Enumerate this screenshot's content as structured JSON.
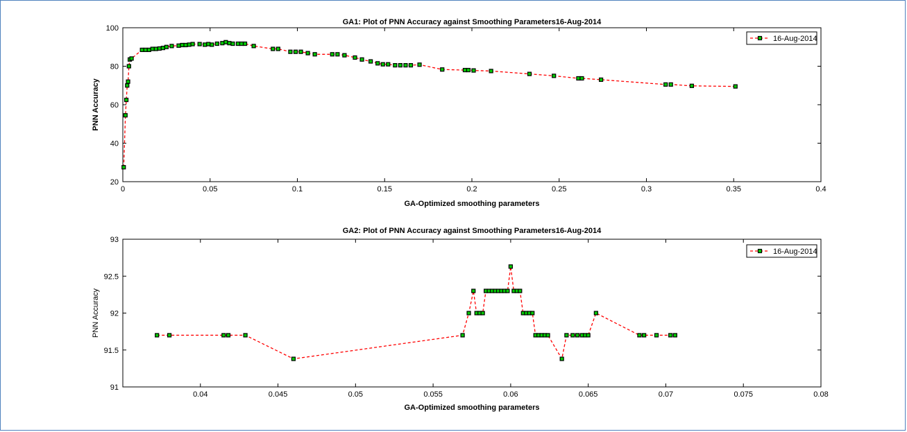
{
  "page": {
    "border_color": "#4f81bd"
  },
  "chart_data": [
    {
      "type": "line",
      "title": "GA1: Plot of PNN Accuracy against Smoothing Parameters16-Aug-2014",
      "xlabel": "GA-Optimized smoothing parameters",
      "ylabel": "PNN Accuracy",
      "ylabel_bold": true,
      "xlim": [
        0,
        0.4
      ],
      "ylim": [
        20,
        100
      ],
      "xticks": [
        0,
        0.05,
        0.1,
        0.15,
        0.2,
        0.25,
        0.3,
        0.35,
        0.4
      ],
      "xtick_labels": [
        "0",
        "0.05",
        "0.1",
        "0.15",
        "0.2",
        "0.25",
        "0.3",
        "0.35",
        "0.4"
      ],
      "yticks": [
        20,
        40,
        60,
        80,
        100
      ],
      "ytick_labels": [
        "20",
        "40",
        "60",
        "80",
        "100"
      ],
      "grid": false,
      "legend_position": "top-right",
      "series": [
        {
          "name": "16-Aug-2014",
          "line_color": "#ff0000",
          "line_style": "dashed",
          "marker": "square",
          "marker_edge_color": "#000000",
          "marker_face_color": "#00cc00",
          "x": [
            0.0005,
            0.0015,
            0.002,
            0.0025,
            0.003,
            0.0035,
            0.004,
            0.005,
            0.011,
            0.013,
            0.015,
            0.017,
            0.019,
            0.021,
            0.023,
            0.025,
            0.028,
            0.032,
            0.034,
            0.036,
            0.038,
            0.04,
            0.044,
            0.047,
            0.049,
            0.051,
            0.054,
            0.057,
            0.059,
            0.061,
            0.063,
            0.066,
            0.068,
            0.07,
            0.075,
            0.086,
            0.089,
            0.096,
            0.099,
            0.102,
            0.106,
            0.11,
            0.12,
            0.123,
            0.127,
            0.133,
            0.137,
            0.142,
            0.146,
            0.149,
            0.152,
            0.156,
            0.159,
            0.162,
            0.165,
            0.17,
            0.183,
            0.196,
            0.198,
            0.201,
            0.211,
            0.233,
            0.247,
            0.261,
            0.263,
            0.274,
            0.311,
            0.314,
            0.326,
            0.351
          ],
          "y": [
            27.5,
            54.5,
            62.5,
            70,
            72,
            80,
            83.5,
            84,
            88.5,
            88.5,
            88.5,
            89,
            89,
            89.2,
            89.5,
            90,
            90.5,
            90.7,
            91,
            91,
            91.2,
            91.5,
            91.5,
            91.2,
            91.5,
            91.2,
            91.7,
            92,
            92.5,
            92,
            91.7,
            91.7,
            91.7,
            91.7,
            90.5,
            89,
            89,
            87.5,
            87.5,
            87.5,
            86.8,
            86.2,
            86.2,
            86.2,
            85.7,
            84.5,
            83.5,
            82.5,
            81.5,
            81,
            81,
            80.5,
            80.5,
            80.5,
            80.5,
            80.8,
            78.3,
            78,
            78,
            77.8,
            77.5,
            76,
            75,
            73.7,
            73.7,
            73,
            70.5,
            70.5,
            69.8,
            69.5
          ]
        }
      ]
    },
    {
      "type": "line",
      "title": "GA2: Plot of PNN Accuracy against Smoothing Parameters16-Aug-2014",
      "xlabel": "GA-Optimized smoothing parameters",
      "ylabel": "PNN Accuracy",
      "ylabel_bold": false,
      "xlim": [
        0.035,
        0.08
      ],
      "ylim": [
        91,
        93
      ],
      "xticks": [
        0.04,
        0.045,
        0.05,
        0.055,
        0.06,
        0.065,
        0.07,
        0.075,
        0.08
      ],
      "xtick_labels": [
        "0.04",
        "0.045",
        "0.05",
        "0.055",
        "0.06",
        "0.065",
        "0.07",
        "0.075",
        "0.08"
      ],
      "yticks": [
        91,
        91.5,
        92,
        92.5,
        93
      ],
      "ytick_labels": [
        "91",
        "91.5",
        "92",
        "92.5",
        "93"
      ],
      "grid": false,
      "legend_position": "top-right",
      "series": [
        {
          "name": "16-Aug-2014",
          "line_color": "#ff0000",
          "line_style": "dashed",
          "marker": "square",
          "marker_edge_color": "#000000",
          "marker_face_color": "#00cc00",
          "x": [
            0.0372,
            0.038,
            0.0415,
            0.0418,
            0.0429,
            0.046,
            0.0569,
            0.0573,
            0.0576,
            0.0578,
            0.058,
            0.0582,
            0.0584,
            0.0586,
            0.0588,
            0.059,
            0.0592,
            0.0594,
            0.0596,
            0.0598,
            0.06,
            0.0602,
            0.0604,
            0.0606,
            0.0608,
            0.061,
            0.0612,
            0.0614,
            0.0616,
            0.0618,
            0.062,
            0.0622,
            0.0624,
            0.0633,
            0.0636,
            0.064,
            0.0643,
            0.0646,
            0.0648,
            0.065,
            0.0655,
            0.0683,
            0.0686,
            0.0694,
            0.0703,
            0.0706
          ],
          "y": [
            91.7,
            91.7,
            91.7,
            91.7,
            91.7,
            91.38,
            91.7,
            92,
            92.3,
            92,
            92,
            92,
            92.3,
            92.3,
            92.3,
            92.3,
            92.3,
            92.3,
            92.3,
            92.3,
            92.63,
            92.3,
            92.3,
            92.3,
            92,
            92,
            92,
            92,
            91.7,
            91.7,
            91.7,
            91.7,
            91.7,
            91.38,
            91.7,
            91.7,
            91.7,
            91.7,
            91.7,
            91.7,
            92,
            91.7,
            91.7,
            91.7,
            91.7,
            91.7
          ]
        }
      ]
    }
  ]
}
